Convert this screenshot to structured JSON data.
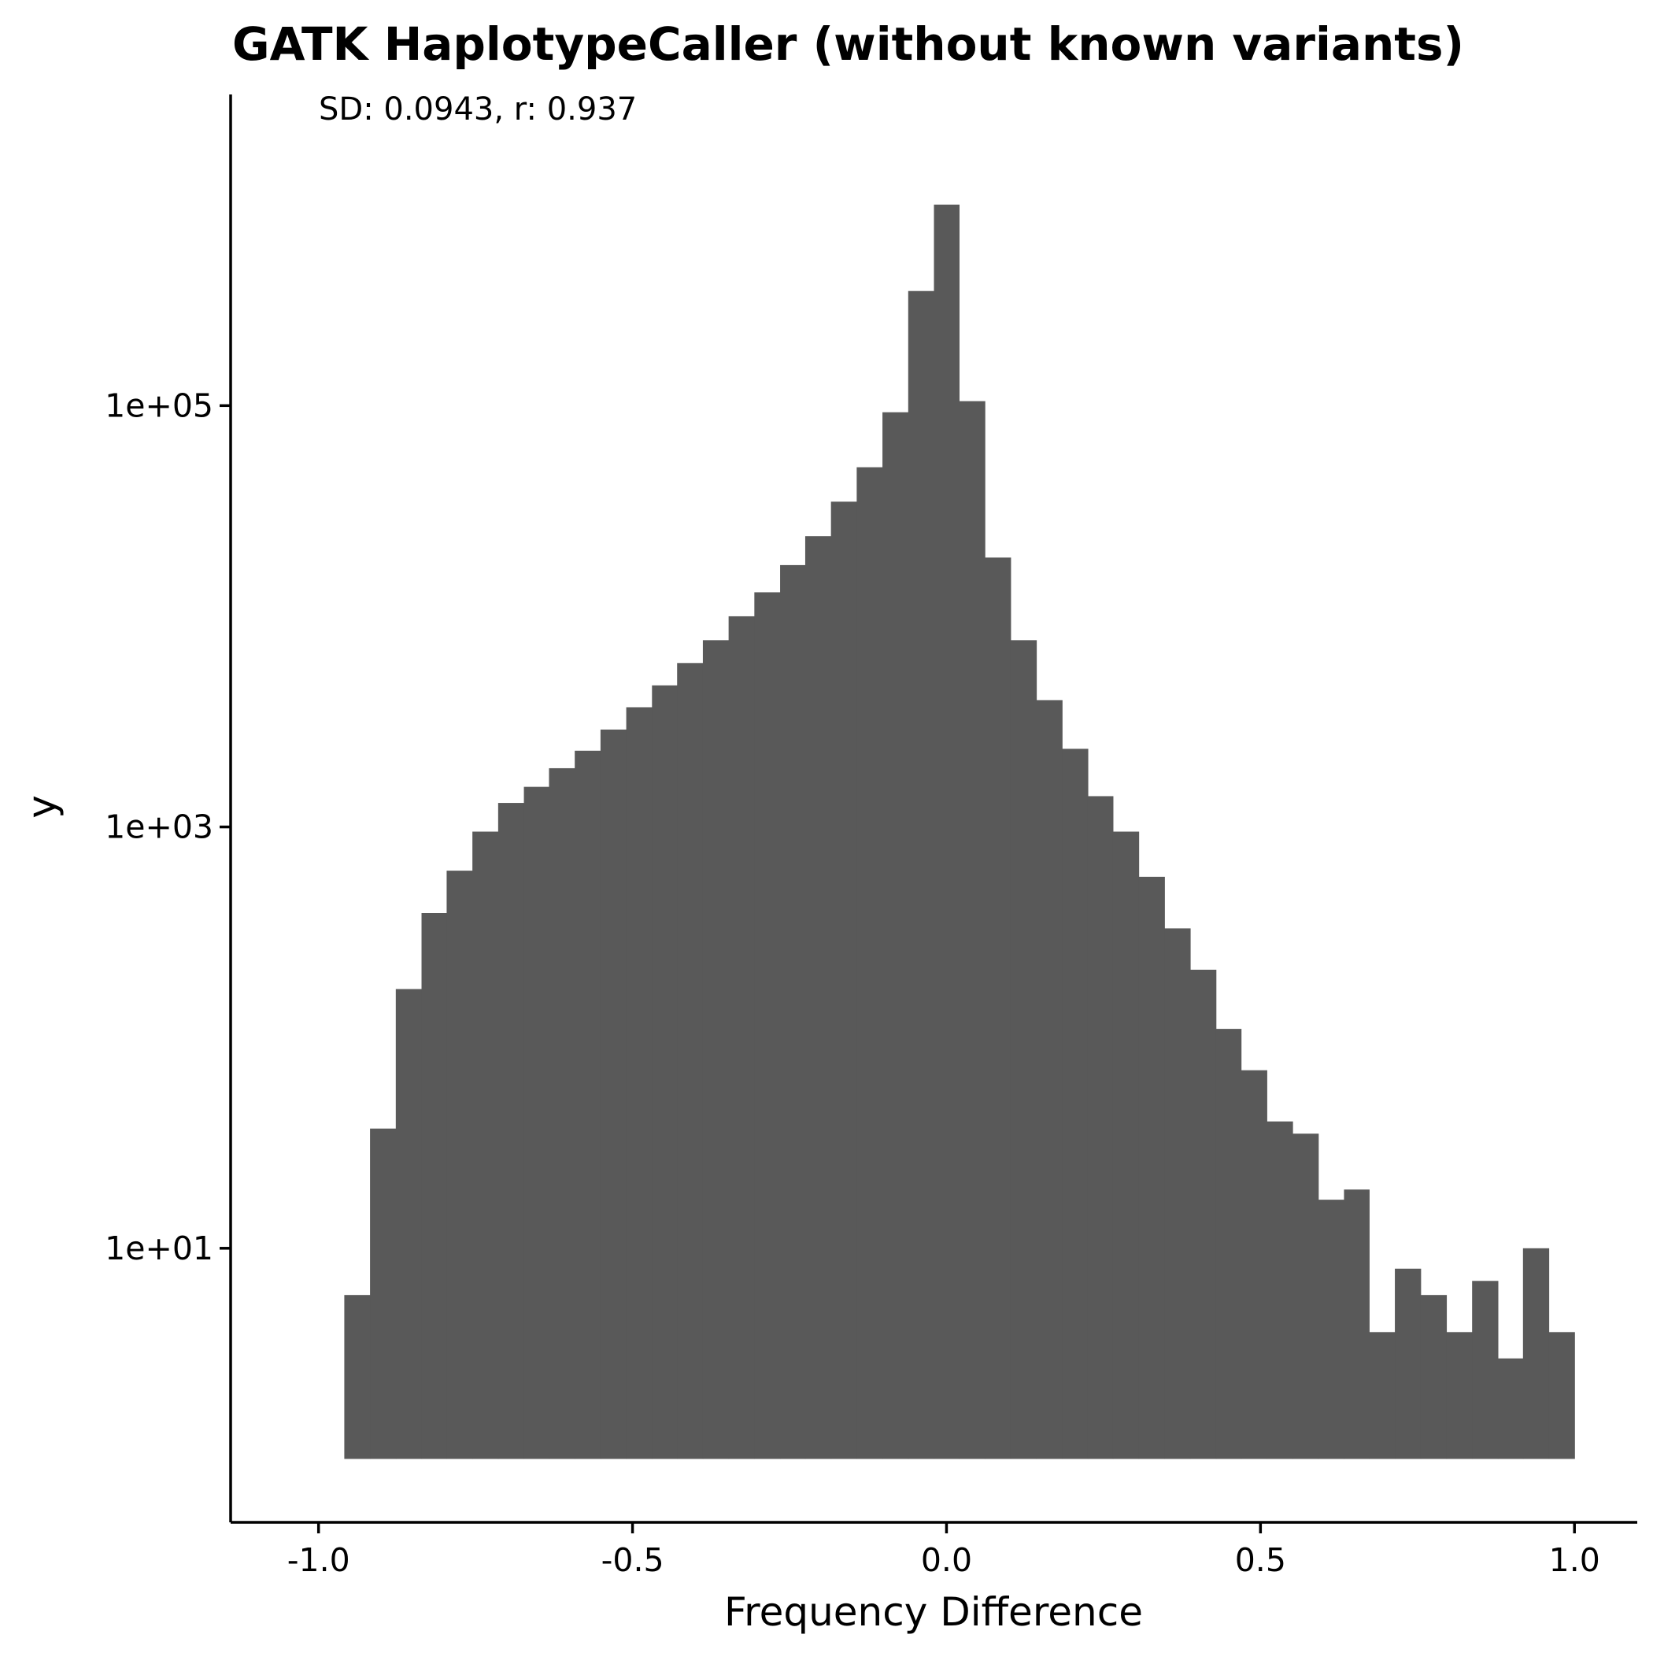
{
  "chart_data": {
    "type": "bar",
    "title": "GATK HaplotypeCaller (without known variants)",
    "annotation": "SD: 0.0943, r: 0.937",
    "xlabel": "Frequency Difference",
    "ylabel": "y",
    "y_scale": "log10",
    "xlim": [
      -1.14,
      1.1
    ],
    "ylim": [
      0.5,
      3000000
    ],
    "x_ticks": [
      {
        "value": -1.0,
        "label": "-1.0"
      },
      {
        "value": -0.5,
        "label": "-0.5"
      },
      {
        "value": 0.0,
        "label": "0.0"
      },
      {
        "value": 0.5,
        "label": "0.5"
      },
      {
        "value": 1.0,
        "label": "1.0"
      }
    ],
    "y_ticks": [
      {
        "value": 10,
        "label": "1e+01"
      },
      {
        "value": 1000,
        "label": "1e+03"
      },
      {
        "value": 100000,
        "label": "1e+05"
      }
    ],
    "bar_baseline": 1,
    "bar_color": "#595959",
    "bins": [
      {
        "x0": -0.959,
        "x1": -0.918,
        "count": 6
      },
      {
        "x0": -0.918,
        "x1": -0.877,
        "count": 37
      },
      {
        "x0": -0.877,
        "x1": -0.836,
        "count": 170
      },
      {
        "x0": -0.836,
        "x1": -0.796,
        "count": 390
      },
      {
        "x0": -0.796,
        "x1": -0.755,
        "count": 620
      },
      {
        "x0": -0.755,
        "x1": -0.714,
        "count": 950
      },
      {
        "x0": -0.714,
        "x1": -0.673,
        "count": 1300
      },
      {
        "x0": -0.673,
        "x1": -0.633,
        "count": 1550
      },
      {
        "x0": -0.633,
        "x1": -0.592,
        "count": 1900
      },
      {
        "x0": -0.592,
        "x1": -0.551,
        "count": 2300
      },
      {
        "x0": -0.551,
        "x1": -0.51,
        "count": 2900
      },
      {
        "x0": -0.51,
        "x1": -0.469,
        "count": 3700
      },
      {
        "x0": -0.469,
        "x1": -0.429,
        "count": 4700
      },
      {
        "x0": -0.429,
        "x1": -0.388,
        "count": 6000
      },
      {
        "x0": -0.388,
        "x1": -0.347,
        "count": 7700
      },
      {
        "x0": -0.347,
        "x1": -0.306,
        "count": 10000
      },
      {
        "x0": -0.306,
        "x1": -0.265,
        "count": 13000
      },
      {
        "x0": -0.265,
        "x1": -0.225,
        "count": 17500
      },
      {
        "x0": -0.225,
        "x1": -0.184,
        "count": 24000
      },
      {
        "x0": -0.184,
        "x1": -0.143,
        "count": 35000
      },
      {
        "x0": -0.143,
        "x1": -0.102,
        "count": 51000
      },
      {
        "x0": -0.102,
        "x1": -0.061,
        "count": 93000
      },
      {
        "x0": -0.061,
        "x1": -0.02,
        "count": 350000
      },
      {
        "x0": -0.02,
        "x1": 0.02,
        "count": 900000
      },
      {
        "x0": 0.02,
        "x1": 0.061,
        "count": 105000
      },
      {
        "x0": 0.061,
        "x1": 0.102,
        "count": 19000
      },
      {
        "x0": 0.102,
        "x1": 0.143,
        "count": 7700
      },
      {
        "x0": 0.143,
        "x1": 0.184,
        "count": 4000
      },
      {
        "x0": 0.184,
        "x1": 0.225,
        "count": 2350
      },
      {
        "x0": 0.225,
        "x1": 0.265,
        "count": 1400
      },
      {
        "x0": 0.265,
        "x1": 0.306,
        "count": 950
      },
      {
        "x0": 0.306,
        "x1": 0.347,
        "count": 580
      },
      {
        "x0": 0.347,
        "x1": 0.388,
        "count": 330
      },
      {
        "x0": 0.388,
        "x1": 0.429,
        "count": 210
      },
      {
        "x0": 0.429,
        "x1": 0.469,
        "count": 110
      },
      {
        "x0": 0.469,
        "x1": 0.51,
        "count": 70
      },
      {
        "x0": 0.51,
        "x1": 0.551,
        "count": 40
      },
      {
        "x0": 0.551,
        "x1": 0.592,
        "count": 35
      },
      {
        "x0": 0.592,
        "x1": 0.633,
        "count": 17
      },
      {
        "x0": 0.633,
        "x1": 0.673,
        "count": 19
      },
      {
        "x0": 0.673,
        "x1": 0.714,
        "count": 4
      },
      {
        "x0": 0.714,
        "x1": 0.755,
        "count": 8
      },
      {
        "x0": 0.755,
        "x1": 0.796,
        "count": 6
      },
      {
        "x0": 0.796,
        "x1": 0.837,
        "count": 4
      },
      {
        "x0": 0.837,
        "x1": 0.878,
        "count": 7
      },
      {
        "x0": 0.878,
        "x1": 0.918,
        "count": 3
      },
      {
        "x0": 0.918,
        "x1": 0.959,
        "count": 10
      },
      {
        "x0": 0.959,
        "x1": 1.0,
        "count": 4
      }
    ]
  }
}
